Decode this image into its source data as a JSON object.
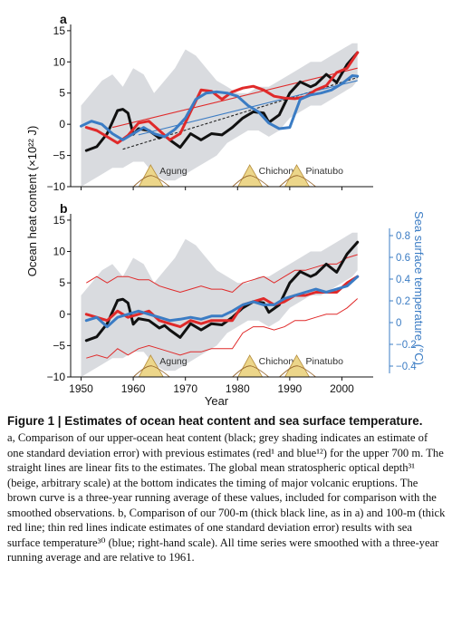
{
  "chart_data": [
    {
      "type": "line",
      "panel_label": "a",
      "xlim": [
        1948,
        2006
      ],
      "ylim": [
        -10,
        16
      ],
      "yticks": [
        -10,
        -5,
        0,
        5,
        10,
        15
      ],
      "ylabel": "Ocean heat content (×10²² J)",
      "series": [
        {
          "key": "black",
          "color": "#111111",
          "x": [
            1951,
            1953,
            1955,
            1957,
            1958,
            1959,
            1960,
            1961,
            1963,
            1965,
            1966,
            1967,
            1969,
            1971,
            1973,
            1975,
            1977,
            1979,
            1981,
            1983,
            1985,
            1986,
            1988,
            1990,
            1992,
            1994,
            1995,
            1997,
            1999,
            2001,
            2003
          ],
          "y": [
            -4.2,
            -3.6,
            -1.5,
            2.2,
            2.4,
            1.8,
            -1.6,
            -0.7,
            -1,
            -2.2,
            -1.8,
            -2.5,
            -3.7,
            -1.5,
            -2.5,
            -1.5,
            -1.7,
            -0.5,
            1,
            2,
            1.8,
            0.3,
            1.5,
            5,
            6.8,
            6,
            6.4,
            8,
            6.7,
            9.6,
            11.5
          ]
        },
        {
          "key": "red",
          "color": "#e02a2a",
          "x": [
            1951,
            1953,
            1955,
            1957,
            1959,
            1961,
            1963,
            1965,
            1967,
            1969,
            1971,
            1973,
            1975,
            1977,
            1979,
            1981,
            1983,
            1985,
            1987,
            1989,
            1991,
            1993,
            1995,
            1997,
            1999,
            2001,
            2003
          ],
          "y": [
            -0.5,
            -1,
            -2,
            -3,
            -1.8,
            0.2,
            0.5,
            -1,
            -2.5,
            -1.5,
            2,
            5.5,
            5.3,
            4,
            5.2,
            5.8,
            6.1,
            5.5,
            4.5,
            4.2,
            4.1,
            4.4,
            5.5,
            6.2,
            8.3,
            9,
            11.5
          ]
        },
        {
          "key": "blue",
          "color": "#3b7cc4",
          "x": [
            1950,
            1952,
            1954,
            1956,
            1958,
            1960,
            1962,
            1964,
            1966,
            1968,
            1970,
            1972,
            1974,
            1976,
            1978,
            1980,
            1982,
            1984,
            1986,
            1988,
            1990,
            1992,
            1994,
            1996,
            1998,
            2000,
            2002,
            2003
          ],
          "y": [
            -0.3,
            0.5,
            0,
            -1.5,
            -2.5,
            -1.5,
            -0.5,
            -1.5,
            -2,
            -0.8,
            1,
            4,
            5,
            5.2,
            5,
            4.5,
            3,
            2,
            0.2,
            -0.7,
            -0.5,
            4,
            4.7,
            5,
            5.5,
            6.5,
            7.8,
            7.7
          ]
        }
      ],
      "trend_lines": [
        {
          "key": "black-trend",
          "color": "#222222",
          "x": [
            1958,
            2003
          ],
          "y": [
            -4,
            7.5
          ]
        },
        {
          "key": "red-trend",
          "color": "#e02a2a",
          "x": [
            1956,
            2003
          ],
          "y": [
            -0.5,
            9
          ]
        },
        {
          "key": "blue-trend",
          "color": "#3b7cc4",
          "x": [
            1961,
            2003
          ],
          "y": [
            -1.7,
            7
          ]
        }
      ],
      "error_band": {
        "x": [
          1950,
          1952,
          1954,
          1956,
          1958,
          1960,
          1962,
          1964,
          1966,
          1968,
          1970,
          1972,
          1974,
          1976,
          1978,
          1980,
          1982,
          1984,
          1986,
          1988,
          1990,
          1992,
          1994,
          1996,
          1998,
          2000,
          2002,
          2003
        ],
        "upper": [
          3,
          5,
          7,
          8,
          6,
          9,
          8,
          5,
          7,
          9,
          12,
          11,
          9,
          7,
          6,
          5,
          5,
          6,
          6,
          7,
          8,
          9,
          10,
          10,
          11,
          12,
          13,
          13
        ],
        "lower": [
          -10,
          -9,
          -8,
          -7,
          -7,
          -6,
          -6,
          -8,
          -9,
          -9,
          -8,
          -7,
          -6,
          -5,
          -3,
          -2,
          -1,
          -1,
          -2,
          -1,
          1,
          2,
          3,
          3,
          4,
          5,
          6,
          7
        ]
      },
      "volcanoes": [
        {
          "label": "Agung",
          "year": 1963.5
        },
        {
          "label": "Chichon",
          "year": 1982.5
        },
        {
          "label": "Pinatubo",
          "year": 1991.5
        }
      ]
    },
    {
      "type": "line",
      "panel_label": "b",
      "xlim": [
        1948,
        2006
      ],
      "ylim": [
        -10,
        16
      ],
      "yticks": [
        -10,
        -5,
        0,
        5,
        10,
        15
      ],
      "xticks": [
        1950,
        1960,
        1970,
        1980,
        1990,
        2000
      ],
      "xlabel": "Year",
      "ylabel": "Ocean heat content (×10²² J)",
      "y2lim": [
        -0.5,
        1.0
      ],
      "y2ticks": [
        -0.4,
        -0.2,
        0,
        0.2,
        0.4,
        0.6,
        0.8
      ],
      "y2ticklabels": [
        "−0.4",
        "−0.2",
        "0",
        "0.2",
        "0.4",
        "0.6",
        "0.8"
      ],
      "y2label": "Sea surface temperature (°C)",
      "series": [
        {
          "key": "black",
          "color": "#111111",
          "x": [
            1951,
            1953,
            1955,
            1957,
            1958,
            1959,
            1960,
            1961,
            1963,
            1965,
            1966,
            1967,
            1969,
            1971,
            1973,
            1975,
            1977,
            1979,
            1981,
            1983,
            1985,
            1986,
            1988,
            1990,
            1992,
            1994,
            1995,
            1997,
            1999,
            2001,
            2003
          ],
          "y": [
            -4.2,
            -3.6,
            -1.5,
            2.2,
            2.4,
            1.8,
            -1.6,
            -0.7,
            -1,
            -2.2,
            -1.8,
            -2.5,
            -3.7,
            -1.5,
            -2.5,
            -1.5,
            -1.7,
            -0.5,
            1,
            2,
            1.8,
            0.3,
            1.5,
            5,
            6.8,
            6,
            6.4,
            8,
            6.7,
            9.6,
            11.5
          ]
        },
        {
          "key": "red",
          "color": "#e02a2a",
          "x": [
            1951,
            1953,
            1955,
            1957,
            1959,
            1961,
            1963,
            1965,
            1967,
            1969,
            1971,
            1973,
            1975,
            1977,
            1979,
            1981,
            1983,
            1985,
            1987,
            1989,
            1991,
            1993,
            1995,
            1997,
            1999,
            2001,
            2003
          ],
          "y": [
            0,
            -0.5,
            -1,
            0.5,
            -0.5,
            0,
            0.5,
            -1,
            -1.5,
            -2,
            -1,
            -1.5,
            -1,
            -1,
            -1,
            1.5,
            2,
            2.5,
            1.5,
            2,
            3,
            3,
            3.5,
            3.5,
            3.5,
            5,
            6
          ]
        },
        {
          "key": "blue",
          "color": "#3b7cc4",
          "x": [
            1951,
            1953,
            1955,
            1957,
            1959,
            1961,
            1963,
            1965,
            1967,
            1969,
            1971,
            1973,
            1975,
            1977,
            1979,
            1981,
            1983,
            1985,
            1987,
            1989,
            1991,
            1993,
            1995,
            1997,
            1999,
            2001,
            2003
          ],
          "y": [
            -1,
            -0.5,
            -2,
            -0.5,
            0,
            0.5,
            0,
            -0.5,
            -1,
            -0.8,
            -0.5,
            -0.8,
            -0.3,
            -0.3,
            0.5,
            1.5,
            2,
            1.5,
            1.5,
            2.5,
            3,
            3.5,
            4,
            3.5,
            4,
            4.5,
            6
          ]
        }
      ],
      "red_error_lines": {
        "x": [
          1951,
          1953,
          1955,
          1957,
          1959,
          1961,
          1963,
          1965,
          1967,
          1969,
          1971,
          1973,
          1975,
          1977,
          1979,
          1981,
          1983,
          1985,
          1987,
          1989,
          1991,
          1993,
          1995,
          1997,
          1999,
          2001,
          2003
        ],
        "upper": [
          5,
          6,
          5,
          6,
          6,
          5.5,
          5.5,
          4.5,
          4,
          3.5,
          4,
          4.5,
          4,
          4,
          3.5,
          5,
          5.5,
          6,
          5,
          6,
          7,
          7,
          7.5,
          8,
          8,
          9,
          9.5
        ],
        "lower": [
          -7,
          -6.5,
          -7,
          -5.5,
          -6.5,
          -5.5,
          -5,
          -5.5,
          -6,
          -6.5,
          -6,
          -6,
          -5.5,
          -5.5,
          -5.5,
          -3,
          -2,
          -2,
          -2.5,
          -2,
          -1,
          -1,
          -0.5,
          0,
          0,
          1,
          2.5
        ]
      },
      "error_band": {
        "x": [
          1950,
          1952,
          1954,
          1956,
          1958,
          1960,
          1962,
          1964,
          1966,
          1968,
          1970,
          1972,
          1974,
          1976,
          1978,
          1980,
          1982,
          1984,
          1986,
          1988,
          1990,
          1992,
          1994,
          1996,
          1998,
          2000,
          2002,
          2003
        ],
        "upper": [
          3,
          5,
          7,
          8,
          6,
          9,
          8,
          5,
          7,
          9,
          12,
          11,
          9,
          7,
          6,
          5,
          5,
          6,
          6,
          7,
          8,
          9,
          10,
          10,
          11,
          12,
          13,
          13
        ],
        "lower": [
          -10,
          -9,
          -8,
          -7,
          -7,
          -6,
          -6,
          -8,
          -9,
          -9,
          -8,
          -7,
          -6,
          -5,
          -3,
          -2,
          -1,
          -1,
          -2,
          -1,
          1,
          2,
          3,
          3,
          4,
          5,
          6,
          7
        ]
      },
      "volcanoes": [
        {
          "label": "Agung",
          "year": 1963.5
        },
        {
          "label": "Chichon",
          "year": 1982.5
        },
        {
          "label": "Pinatubo",
          "year": 1991.5
        }
      ]
    }
  ],
  "caption": {
    "title": "Figure 1 | Estimates of ocean heat content and sea surface temperature.",
    "body": "a, Comparison of our upper-ocean heat content (black; grey shading indicates an estimate of one standard deviation error) with previous estimates (red¹ and blue¹²) for the upper 700 m. The straight lines are linear fits to the estimates. The global mean stratospheric optical depth³¹ (beige, arbitrary scale) at the bottom indicates the timing of major volcanic eruptions. The brown curve is a three-year running average of these values, included for comparison with the smoothed observations. b, Comparison of our 700-m (thick black line, as in a) and 100-m (thick red line; thin red lines indicate estimates of one standard deviation error) results with sea surface temperature³⁰ (blue; right-hand scale). All time series were smoothed with a three-year running average and are relative to 1961."
  },
  "colors": {
    "band": "#d9dbdf",
    "volcano_fill": "#ecd68a",
    "volcano_edge": "#b89040",
    "sst_axis": "#3b7cc4"
  }
}
